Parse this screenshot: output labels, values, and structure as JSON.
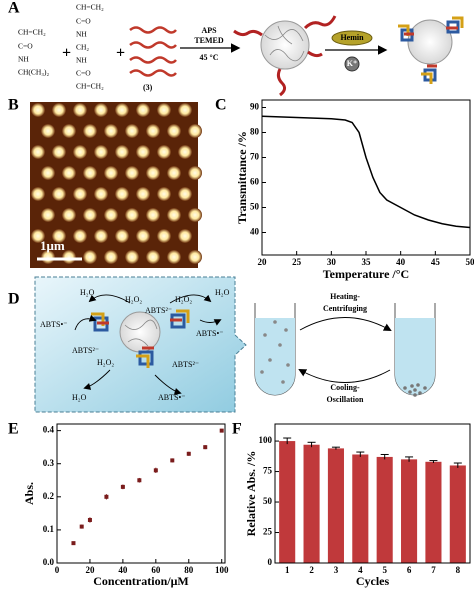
{
  "panel_labels": [
    "A",
    "B",
    "C",
    "D",
    "E",
    "F"
  ],
  "scheme_a": {
    "monomer_1": [
      "CH=CH₂",
      "C=O",
      "NH",
      "CH(CH₃)₂"
    ],
    "monomer_2": [
      "CH=CH₂",
      "C=O",
      "NH",
      "CH₂",
      "NH",
      "C=O",
      "CH=CH₂"
    ],
    "plus": "+",
    "compound": "(3)",
    "conditions": [
      "APS",
      "TEMED",
      "45 °C"
    ],
    "hemin": "Hemin",
    "potassium": "K⁺"
  },
  "afm": {
    "scale_bar": "1μm"
  },
  "scheme_d": {
    "species": [
      "H₂O",
      "H₂O₂",
      "ABTS•⁻",
      "ABTS²⁻"
    ],
    "forward": [
      "Heating-",
      "Centrifuging"
    ],
    "backward": [
      "Cooling-",
      "Oscillation"
    ]
  },
  "chart_data": [
    {
      "type": "line",
      "xlabel": "Temperature /°C",
      "ylabel": "Transmittance /%",
      "x": [
        20,
        25,
        30,
        32,
        33,
        34,
        35,
        36,
        37,
        38,
        40,
        42,
        44,
        46,
        48,
        50
      ],
      "values": [
        86.5,
        86,
        85.5,
        85,
        84,
        80,
        70,
        62,
        56,
        53,
        50,
        47,
        45,
        43.5,
        42.5,
        42
      ],
      "color": "#000000",
      "xlim": [
        20,
        50
      ],
      "xticks": [
        20,
        25,
        30,
        35,
        40,
        45,
        50
      ],
      "ylim": [
        31,
        93
      ],
      "yticks": [
        40,
        50,
        60,
        70,
        80,
        90
      ]
    },
    {
      "type": "scatter",
      "xlabel": "Concentration/μM",
      "ylabel": "Abs.",
      "x": [
        10,
        15,
        20,
        30,
        40,
        50,
        60,
        70,
        80,
        90,
        100
      ],
      "values": [
        0.06,
        0.11,
        0.13,
        0.2,
        0.23,
        0.25,
        0.28,
        0.31,
        0.33,
        0.35,
        0.4
      ],
      "errors": [
        0.005,
        0.006,
        0.008,
        0.008,
        0.007,
        0.007,
        0.008,
        0.006,
        0.006,
        0.006,
        0.005
      ],
      "color": "#7a1c1c",
      "xlim": [
        0,
        102
      ],
      "xticks": [
        0,
        20,
        40,
        60,
        80,
        100
      ],
      "ylim": [
        0,
        0.42
      ],
      "yticks": [
        {
          "value": 0,
          "label": "0.0"
        },
        0.1,
        0.2,
        0.3,
        0.4
      ]
    },
    {
      "type": "bar",
      "xlabel": "Cycles",
      "ylabel": "Relative Abs. /%",
      "categories": [
        "1",
        "2",
        "3",
        "4",
        "5",
        "6",
        "7",
        "8"
      ],
      "values": [
        100,
        97,
        94,
        89,
        87,
        85,
        83,
        80
      ],
      "errors": [
        2.5,
        2,
        1,
        2,
        2,
        2,
        1,
        2
      ],
      "color": "#c0393b",
      "ylim": [
        0,
        114
      ],
      "yticks": [
        0,
        25,
        50,
        75,
        100
      ]
    }
  ]
}
